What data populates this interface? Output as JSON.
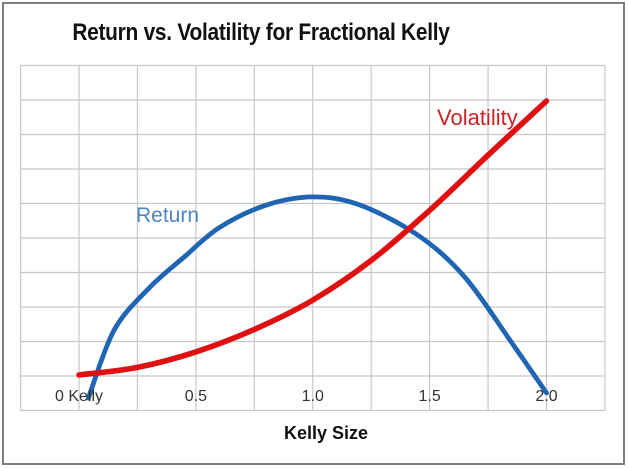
{
  "window": {
    "background": "#ffffff",
    "border_color": "#7d7d7d"
  },
  "chart_data": {
    "type": "line",
    "title": "Return vs. Volatility for Fractional Kelly",
    "xlabel": "Kelly Size",
    "ylabel": "",
    "x_range": [
      -0.25,
      2.25
    ],
    "y_range": [
      -1,
      9
    ],
    "y_units_note": "y axis unlabeled; values in gridline units, zero at second gridline from bottom",
    "grid": {
      "shown": true,
      "x_step": 0.25,
      "y_step": 1,
      "color": "#c7c7c7"
    },
    "x_ticks": [
      0,
      0.5,
      1.0,
      1.5,
      2.0
    ],
    "x_tick_labels": [
      "0 Kelly",
      "0.5",
      "1.0",
      "1.5",
      "2.0"
    ],
    "y_tick_labels": [],
    "legend_position": "inline labels next to curves",
    "series": [
      {
        "name": "Return",
        "color": "#2065B4",
        "label_color": "#4F86C4",
        "line_width": 4.8,
        "x": [
          0.04,
          0.15,
          0.3,
          0.45,
          0.6,
          0.8,
          1.0,
          1.2,
          1.45,
          1.65,
          1.85,
          2.0
        ],
        "y": [
          -0.64,
          1.33,
          2.55,
          3.45,
          4.3,
          4.95,
          5.19,
          4.96,
          4.08,
          2.87,
          0.98,
          -0.49
        ]
      },
      {
        "name": "Volatility",
        "color": "#E01010",
        "label_color": "#CC2222",
        "line_width": 5.6,
        "x": [
          0.0,
          0.25,
          0.5,
          0.75,
          1.0,
          1.25,
          1.5,
          1.75,
          2.0
        ],
        "y": [
          0.03,
          0.25,
          0.7,
          1.35,
          2.2,
          3.35,
          4.8,
          6.4,
          7.97
        ]
      }
    ]
  }
}
